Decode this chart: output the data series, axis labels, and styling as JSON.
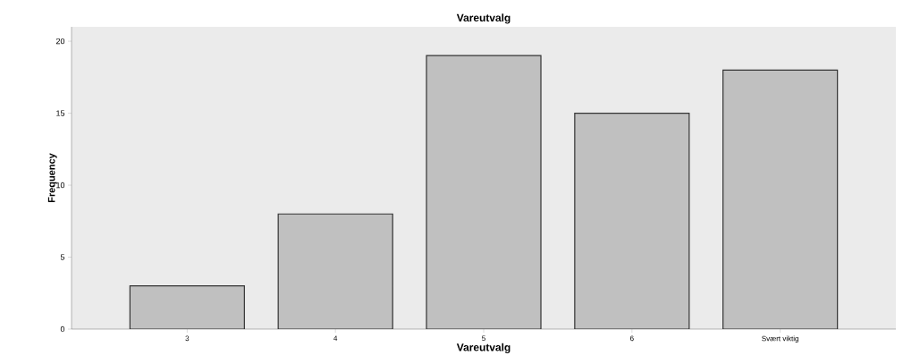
{
  "chart_data": {
    "type": "bar",
    "title": "Vareutvalg",
    "xlabel": "Vareutvalg",
    "ylabel": "Frequency",
    "categories": [
      "3",
      "4",
      "5",
      "6",
      "Svært viktig"
    ],
    "values": [
      3,
      8,
      19,
      15,
      18
    ],
    "color": "#c0c0c0",
    "ylim": [
      0,
      21
    ],
    "yticks": [
      0,
      5,
      10,
      15,
      20
    ]
  }
}
